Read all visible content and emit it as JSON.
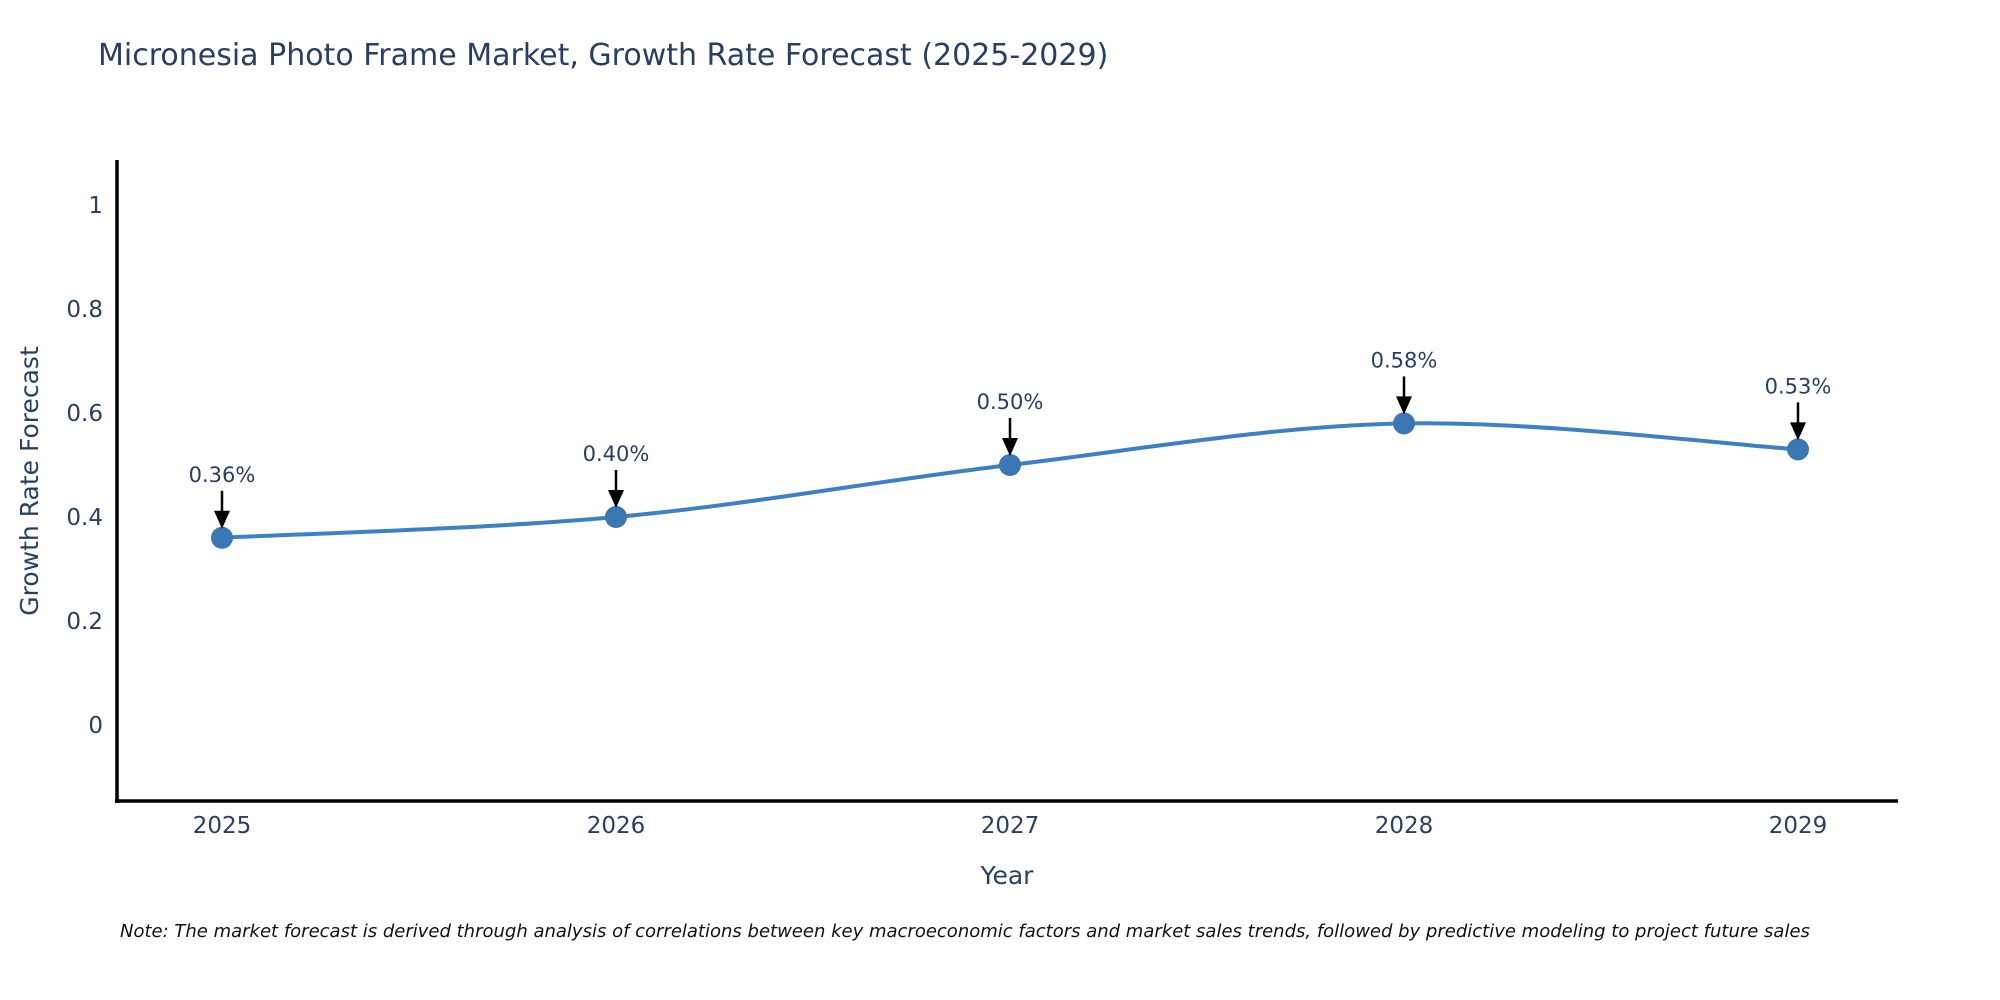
{
  "chart": {
    "title": "Micronesia Photo Frame Market, Growth Rate Forecast (2025-2029)",
    "note": "Note: The market forecast is derived through analysis of correlations between key macroeconomic factors and market sales trends, followed by predictive modeling to project future sales"
  },
  "chart_data": {
    "type": "line",
    "title": "Micronesia Photo Frame Market, Growth Rate Forecast (2025-2029)",
    "xlabel": "Year",
    "ylabel": "Growth Rate Forecast",
    "categories": [
      "2025",
      "2026",
      "2027",
      "2028",
      "2029"
    ],
    "series": [
      {
        "name": "Growth Rate Forecast",
        "values": [
          0.36,
          0.4,
          0.5,
          0.58,
          0.53
        ],
        "point_labels": [
          "0.36%",
          "0.40%",
          "0.50%",
          "0.58%",
          "0.53%"
        ]
      }
    ],
    "y_tick_labels": [
      "0",
      "0.2",
      "0.4",
      "0.6",
      "0.8",
      "1"
    ],
    "y_tick_values": [
      0,
      0.2,
      0.4,
      0.6,
      0.8,
      1
    ],
    "ylim": [
      -0.148,
      1.087
    ],
    "grid": false,
    "legend_position": "none",
    "line_smoothing": "spline",
    "colors": {
      "line": "#4080bd",
      "marker": "#3a77b3",
      "axis": "#000000",
      "text": "#2a3f5f",
      "annotation_arrow": "#000000",
      "background": "#ffffff"
    }
  }
}
